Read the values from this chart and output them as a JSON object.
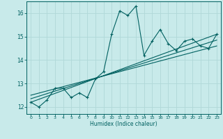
{
  "xlabel": "Humidex (Indice chaleur)",
  "bg_color": "#c8eaea",
  "line_color": "#006060",
  "grid_color": "#b0d8d8",
  "xlim": [
    -0.5,
    23.5
  ],
  "ylim": [
    11.7,
    16.5
  ],
  "yticks": [
    12,
    13,
    14,
    15,
    16
  ],
  "xticks": [
    0,
    1,
    2,
    3,
    4,
    5,
    6,
    7,
    8,
    9,
    10,
    11,
    12,
    13,
    14,
    15,
    16,
    17,
    18,
    19,
    20,
    21,
    22,
    23
  ],
  "humidex_x": [
    0,
    1,
    2,
    3,
    4,
    5,
    6,
    7,
    8,
    9,
    10,
    11,
    12,
    13,
    14,
    15,
    16,
    17,
    18,
    19,
    20,
    21,
    22,
    23
  ],
  "humidex_y": [
    12.2,
    12.0,
    12.3,
    12.8,
    12.8,
    12.4,
    12.6,
    12.4,
    13.2,
    13.5,
    15.1,
    16.1,
    15.9,
    16.3,
    14.2,
    14.8,
    15.3,
    14.7,
    14.4,
    14.8,
    14.9,
    14.6,
    14.5,
    15.1
  ],
  "trend1_x": [
    0,
    23
  ],
  "trend1_y": [
    12.2,
    15.1
  ],
  "trend2_x": [
    0,
    23
  ],
  "trend2_y": [
    12.35,
    14.85
  ],
  "trend3_x": [
    0,
    23
  ],
  "trend3_y": [
    12.5,
    14.6
  ]
}
